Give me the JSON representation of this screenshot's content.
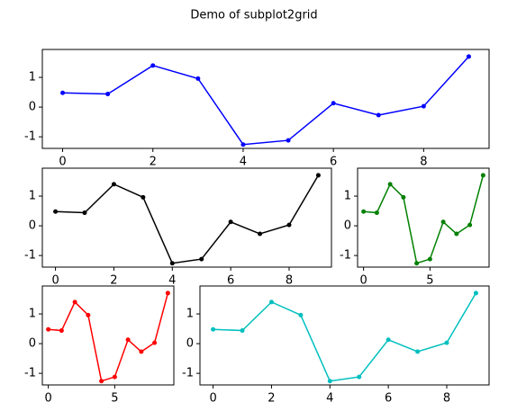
{
  "title": "Demo of subplot2grid",
  "chart_data": [
    {
      "type": "line",
      "color": "#0000ff",
      "x": [
        0,
        1,
        2,
        3,
        4,
        5,
        6,
        7,
        8,
        9
      ],
      "values": [
        0.48,
        0.44,
        1.4,
        0.96,
        -1.26,
        -1.12,
        0.13,
        -0.27,
        0.03,
        1.7
      ],
      "xlim": [
        -0.45,
        9.45
      ],
      "ylim": [
        -1.39,
        1.94
      ],
      "xticks": [
        0,
        2,
        4,
        6,
        8
      ],
      "yticks": [
        -1,
        0,
        1
      ]
    },
    {
      "type": "line",
      "color": "#000000",
      "x": [
        0,
        1,
        2,
        3,
        4,
        5,
        6,
        7,
        8,
        9
      ],
      "values": [
        0.48,
        0.44,
        1.4,
        0.96,
        -1.26,
        -1.12,
        0.13,
        -0.27,
        0.03,
        1.7
      ],
      "xlim": [
        -0.45,
        9.45
      ],
      "ylim": [
        -1.39,
        1.94
      ],
      "xticks": [
        0,
        2,
        4,
        6,
        8
      ],
      "yticks": [
        -1,
        0,
        1
      ]
    },
    {
      "type": "line",
      "color": "#008000",
      "x": [
        0,
        1,
        2,
        3,
        4,
        5,
        6,
        7,
        8,
        9
      ],
      "values": [
        0.48,
        0.44,
        1.4,
        0.96,
        -1.26,
        -1.12,
        0.13,
        -0.27,
        0.03,
        1.7
      ],
      "xlim": [
        -0.45,
        9.45
      ],
      "ylim": [
        -1.39,
        1.94
      ],
      "xticks": [
        0,
        5
      ],
      "yticks": [
        -1,
        0,
        1
      ]
    },
    {
      "type": "line",
      "color": "#ff0000",
      "x": [
        0,
        1,
        2,
        3,
        4,
        5,
        6,
        7,
        8,
        9
      ],
      "values": [
        0.48,
        0.44,
        1.4,
        0.96,
        -1.26,
        -1.12,
        0.13,
        -0.27,
        0.03,
        1.7
      ],
      "xlim": [
        -0.45,
        9.45
      ],
      "ylim": [
        -1.39,
        1.94
      ],
      "xticks": [
        0,
        5
      ],
      "yticks": [
        -1,
        0,
        1
      ]
    },
    {
      "type": "line",
      "color": "#00bfbf",
      "x": [
        0,
        1,
        2,
        3,
        4,
        5,
        6,
        7,
        8,
        9
      ],
      "values": [
        0.48,
        0.44,
        1.4,
        0.96,
        -1.26,
        -1.12,
        0.13,
        -0.27,
        0.03,
        1.7
      ],
      "xlim": [
        -0.45,
        9.45
      ],
      "ylim": [
        -1.39,
        1.94
      ],
      "xticks": [
        0,
        2,
        4,
        6,
        8
      ],
      "yticks": [
        -1,
        0,
        1
      ]
    }
  ]
}
